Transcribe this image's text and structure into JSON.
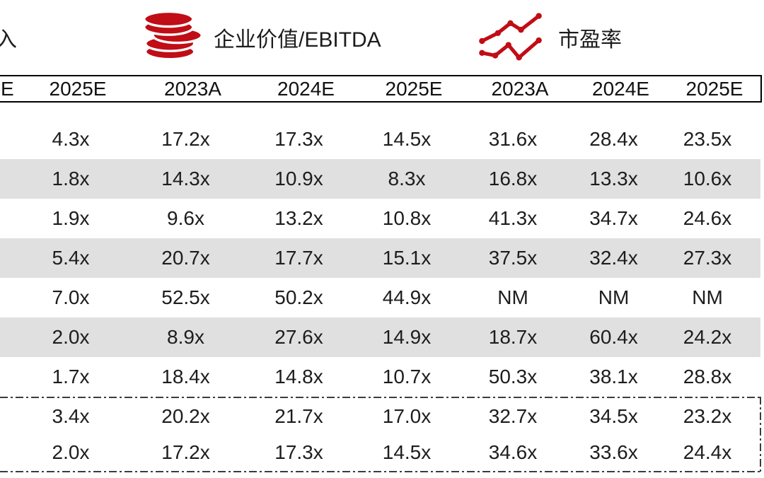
{
  "legend": {
    "partial_label": "入",
    "items": [
      {
        "icon": "coins-icon",
        "label": "企业价值/EBITDA"
      },
      {
        "icon": "line-chart-icon",
        "label": "市盈率"
      }
    ]
  },
  "table": {
    "partial_header": "E",
    "headers": [
      "2025E",
      "2023A",
      "2024E",
      "2025E",
      "2023A",
      "2024E",
      "2025E"
    ],
    "rows": [
      [
        "4.3x",
        "17.2x",
        "17.3x",
        "14.5x",
        "31.6x",
        "28.4x",
        "23.5x"
      ],
      [
        "1.8x",
        "14.3x",
        "10.9x",
        "8.3x",
        "16.8x",
        "13.3x",
        "10.6x"
      ],
      [
        "1.9x",
        "9.6x",
        "13.2x",
        "10.8x",
        "41.3x",
        "34.7x",
        "24.6x"
      ],
      [
        "5.4x",
        "20.7x",
        "17.7x",
        "15.1x",
        "37.5x",
        "32.4x",
        "27.3x"
      ],
      [
        "7.0x",
        "52.5x",
        "50.2x",
        "44.9x",
        "NM",
        "NM",
        "NM"
      ],
      [
        "2.0x",
        "8.9x",
        "27.6x",
        "14.9x",
        "18.7x",
        "60.4x",
        "24.2x"
      ],
      [
        "1.7x",
        "18.4x",
        "14.8x",
        "10.7x",
        "50.3x",
        "38.1x",
        "28.8x"
      ]
    ],
    "summary_rows": [
      [
        "3.4x",
        "20.2x",
        "21.7x",
        "17.0x",
        "32.7x",
        "34.5x",
        "23.2x"
      ],
      [
        "2.0x",
        "17.2x",
        "17.3x",
        "14.5x",
        "34.6x",
        "33.6x",
        "24.4x"
      ]
    ]
  },
  "colors": {
    "accent_red": "#c00d16",
    "stripe_gray": "#e0e0e0",
    "border_black": "#000000"
  }
}
